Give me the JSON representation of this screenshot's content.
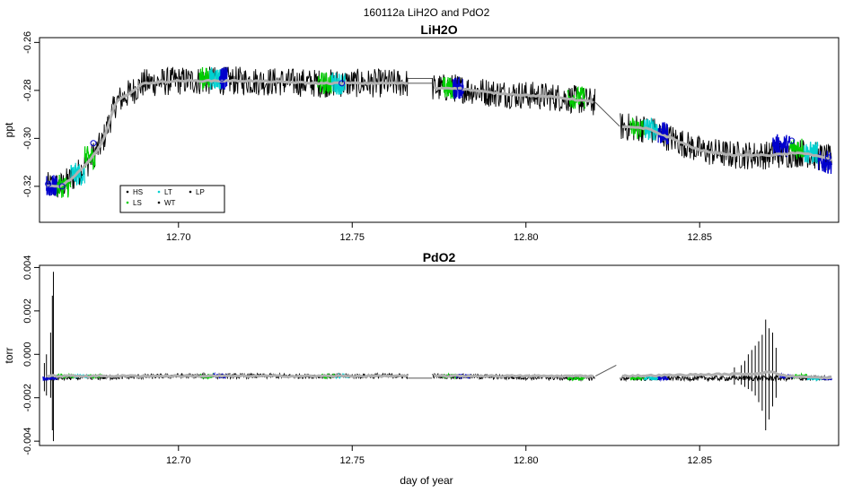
{
  "figure": {
    "main_title": "160112a   LiH2O and PdO2",
    "xlabel": "day of year"
  },
  "chart_data": [
    {
      "type": "line",
      "title": "LiH2O",
      "ylabel": "ppt",
      "xlim": [
        12.66,
        12.89
      ],
      "ylim": [
        -0.335,
        -0.258
      ],
      "xticks": [
        "12.70",
        "12.75",
        "12.80",
        "12.85"
      ],
      "xtick_values": [
        12.7,
        12.75,
        12.8,
        12.85
      ],
      "yticks": [
        "-0.26",
        "-0.28",
        "-0.30",
        "-0.32"
      ],
      "ytick_values": [
        -0.26,
        -0.28,
        -0.3,
        -0.32
      ],
      "legend": {
        "position": "bottom-left",
        "entries": [
          {
            "label": "HS",
            "color": "#000000"
          },
          {
            "label": "LT",
            "color": "#00d0d0"
          },
          {
            "label": "LP",
            "color": "#000000"
          },
          {
            "label": "LS",
            "color": "#00cc00"
          },
          {
            "label": "WT",
            "color": "#000000"
          }
        ]
      },
      "series": [
        {
          "role": "raw",
          "color": "#000000",
          "x": [
            12.662,
            12.666,
            12.67,
            12.674,
            12.678,
            12.682,
            12.69,
            12.7,
            12.72,
            12.74,
            12.76,
            12.766,
            12.773,
            12.78,
            12.79,
            12.8,
            12.81,
            12.82,
            12.827,
            12.835,
            12.842,
            12.85,
            12.86,
            12.87,
            12.88,
            12.888
          ],
          "y": [
            -0.32,
            -0.32,
            -0.316,
            -0.31,
            -0.302,
            -0.285,
            -0.277,
            -0.276,
            -0.276,
            -0.277,
            -0.277,
            -0.277,
            -0.279,
            -0.279,
            -0.281,
            -0.282,
            -0.283,
            -0.285,
            -0.295,
            -0.296,
            -0.3,
            -0.305,
            -0.307,
            -0.307,
            -0.306,
            -0.309
          ],
          "noise": 0.006
        },
        {
          "role": "smooth",
          "color": "#b0b0b0",
          "x": [
            12.662,
            12.666,
            12.67,
            12.674,
            12.678,
            12.682,
            12.69,
            12.7,
            12.72,
            12.74,
            12.76,
            12.766,
            12.773,
            12.78,
            12.79,
            12.8,
            12.81,
            12.82,
            12.827,
            12.835,
            12.842,
            12.85,
            12.86,
            12.87,
            12.88,
            12.888
          ],
          "y": [
            -0.32,
            -0.32,
            -0.316,
            -0.31,
            -0.302,
            -0.285,
            -0.277,
            -0.276,
            -0.276,
            -0.277,
            -0.277,
            -0.277,
            -0.279,
            -0.279,
            -0.281,
            -0.282,
            -0.283,
            -0.285,
            -0.295,
            -0.296,
            -0.3,
            -0.305,
            -0.307,
            -0.307,
            -0.306,
            -0.309
          ]
        }
      ],
      "gap_bridges": [
        {
          "x": [
            12.766,
            12.773
          ],
          "y": [
            -0.275,
            -0.275
          ]
        },
        {
          "x": [
            12.766,
            12.773
          ],
          "y": [
            -0.277,
            -0.277
          ]
        },
        {
          "x": [
            12.82,
            12.827
          ],
          "y": [
            -0.285,
            -0.295
          ]
        }
      ],
      "calibration_segments": [
        {
          "x0": 12.662,
          "x1": 12.665,
          "color": "#0000cc",
          "center": -0.32
        },
        {
          "x0": 12.665,
          "x1": 12.669,
          "color": "#00cc00",
          "center": -0.32
        },
        {
          "x0": 12.669,
          "x1": 12.673,
          "color": "#00d0d0",
          "center": -0.315
        },
        {
          "x0": 12.673,
          "x1": 12.676,
          "color": "#00cc00",
          "center": -0.308
        },
        {
          "x0": 12.706,
          "x1": 12.709,
          "color": "#00cc00",
          "center": -0.275
        },
        {
          "x0": 12.709,
          "x1": 12.712,
          "color": "#00d0d0",
          "center": -0.275
        },
        {
          "x0": 12.712,
          "x1": 12.714,
          "color": "#0000cc",
          "center": -0.275
        },
        {
          "x0": 12.74,
          "x1": 12.744,
          "color": "#00cc00",
          "center": -0.277
        },
        {
          "x0": 12.744,
          "x1": 12.748,
          "color": "#00d0d0",
          "center": -0.277
        },
        {
          "x0": 12.776,
          "x1": 12.779,
          "color": "#00cc00",
          "center": -0.279
        },
        {
          "x0": 12.779,
          "x1": 12.782,
          "color": "#0000cc",
          "center": -0.279
        },
        {
          "x0": 12.812,
          "x1": 12.817,
          "color": "#00cc00",
          "center": -0.283
        },
        {
          "x0": 12.83,
          "x1": 12.834,
          "color": "#00cc00",
          "center": -0.296
        },
        {
          "x0": 12.834,
          "x1": 12.838,
          "color": "#00d0d0",
          "center": -0.296
        },
        {
          "x0": 12.838,
          "x1": 12.841,
          "color": "#0000cc",
          "center": -0.298
        },
        {
          "x0": 12.871,
          "x1": 12.876,
          "color": "#0000cc",
          "center": -0.303
        },
        {
          "x0": 12.876,
          "x1": 12.88,
          "color": "#00cc00",
          "center": -0.304
        },
        {
          "x0": 12.88,
          "x1": 12.884,
          "color": "#00d0d0",
          "center": -0.306
        },
        {
          "x0": 12.884,
          "x1": 12.888,
          "color": "#0000cc",
          "center": -0.31
        }
      ],
      "markers": [
        {
          "x": 12.6625,
          "y": -0.319,
          "color": "#0000cc"
        },
        {
          "x": 12.6665,
          "y": -0.32,
          "color": "#0000cc"
        },
        {
          "x": 12.6755,
          "y": -0.302,
          "color": "#0000cc"
        },
        {
          "x": 12.7125,
          "y": -0.275,
          "color": "#0000cc"
        },
        {
          "x": 12.747,
          "y": -0.277,
          "color": "#0000cc"
        },
        {
          "x": 12.781,
          "y": -0.279,
          "color": "#0000cc"
        },
        {
          "x": 12.8395,
          "y": -0.297,
          "color": "#0000cc"
        },
        {
          "x": 12.8725,
          "y": -0.302,
          "color": "#0000cc"
        },
        {
          "x": 12.8765,
          "y": -0.301,
          "color": "#0000cc"
        },
        {
          "x": 12.887,
          "y": -0.308,
          "color": "#0000cc"
        }
      ]
    },
    {
      "type": "line",
      "title": "PdO2",
      "ylabel": "torr",
      "xlim": [
        12.66,
        12.89
      ],
      "ylim": [
        -0.0042,
        0.0041
      ],
      "xticks": [
        "12.70",
        "12.75",
        "12.80",
        "12.85"
      ],
      "xtick_values": [
        12.7,
        12.75,
        12.8,
        12.85
      ],
      "yticks": [
        "0.004",
        "0.002",
        "0.000",
        "-0.002",
        "-0.004"
      ],
      "ytick_values": [
        0.004,
        0.002,
        0.0,
        -0.002,
        -0.004
      ],
      "series": [
        {
          "role": "raw",
          "color": "#000000",
          "x": [
            12.662,
            12.7,
            12.766,
            12.773,
            12.82,
            12.827,
            12.888
          ],
          "y": [
            -0.0011,
            -0.001,
            -0.001,
            -0.001,
            -0.0011,
            -0.0011,
            -0.0011
          ],
          "noise": 0.00012
        },
        {
          "role": "smooth",
          "color": "#b0b0b0",
          "x": [
            12.662,
            12.7,
            12.766,
            12.773,
            12.82,
            12.827,
            12.865,
            12.87,
            12.875,
            12.888
          ],
          "y": [
            -0.001,
            -0.001,
            -0.001,
            -0.001,
            -0.001,
            -0.001,
            -0.0009,
            -0.0008,
            -0.001,
            -0.0011
          ]
        }
      ],
      "gap_bridges": [
        {
          "x": [
            12.766,
            12.773
          ],
          "y": [
            -0.0011,
            -0.0011
          ]
        },
        {
          "x": [
            12.82,
            12.826
          ],
          "y": [
            -0.001,
            -0.0005
          ]
        }
      ],
      "spikes": [
        {
          "x": 12.664,
          "ymin": -0.004,
          "ymax": 0.0038
        },
        {
          "x": 12.6637,
          "ymin": -0.0035,
          "ymax": 0.0027
        },
        {
          "x": 12.6632,
          "ymin": -0.002,
          "ymax": 0.001
        },
        {
          "x": 12.662,
          "ymin": -0.0019,
          "ymax": 0.0
        },
        {
          "x": 12.6614,
          "ymin": -0.0017,
          "ymax": -0.0004
        },
        {
          "x": 12.869,
          "ymin": -0.0035,
          "ymax": 0.0016
        },
        {
          "x": 12.87,
          "ymin": -0.003,
          "ymax": 0.0012
        },
        {
          "x": 12.868,
          "ymin": -0.0026,
          "ymax": 0.0009
        },
        {
          "x": 12.867,
          "ymin": -0.0022,
          "ymax": 0.0006
        },
        {
          "x": 12.871,
          "ymin": -0.0024,
          "ymax": 0.001
        },
        {
          "x": 12.866,
          "ymin": -0.0019,
          "ymax": 0.0004
        },
        {
          "x": 12.865,
          "ymin": -0.0017,
          "ymax": 0.0002
        },
        {
          "x": 12.864,
          "ymin": -0.0016,
          "ymax": 0.0
        },
        {
          "x": 12.872,
          "ymin": -0.002,
          "ymax": 0.0003
        },
        {
          "x": 12.863,
          "ymin": -0.0015,
          "ymax": -0.0003
        },
        {
          "x": 12.862,
          "ymin": -0.0014,
          "ymax": -0.0005
        },
        {
          "x": 12.86,
          "ymin": -0.0014,
          "ymax": -0.0006
        }
      ],
      "calibration_segments": [
        {
          "x0": 12.661,
          "x1": 12.665,
          "color": "#0000cc",
          "center": -0.0011
        },
        {
          "x0": 12.665,
          "x1": 12.67,
          "color": "#00cc00",
          "center": -0.001
        },
        {
          "x0": 12.67,
          "x1": 12.674,
          "color": "#00d0d0",
          "center": -0.001
        },
        {
          "x0": 12.674,
          "x1": 12.678,
          "color": "#00cc00",
          "center": -0.001
        },
        {
          "x0": 12.706,
          "x1": 12.71,
          "color": "#00cc00",
          "center": -0.001
        },
        {
          "x0": 12.71,
          "x1": 12.714,
          "color": "#0000cc",
          "center": -0.001
        },
        {
          "x0": 12.741,
          "x1": 12.745,
          "color": "#00cc00",
          "center": -0.001
        },
        {
          "x0": 12.745,
          "x1": 12.749,
          "color": "#00d0d0",
          "center": -0.001
        },
        {
          "x0": 12.776,
          "x1": 12.78,
          "color": "#00cc00",
          "center": -0.001
        },
        {
          "x0": 12.78,
          "x1": 12.784,
          "color": "#0000cc",
          "center": -0.001
        },
        {
          "x0": 12.812,
          "x1": 12.817,
          "color": "#00cc00",
          "center": -0.0011
        },
        {
          "x0": 12.83,
          "x1": 12.834,
          "color": "#00cc00",
          "center": -0.0011
        },
        {
          "x0": 12.834,
          "x1": 12.838,
          "color": "#00d0d0",
          "center": -0.0011
        },
        {
          "x0": 12.838,
          "x1": 12.841,
          "color": "#0000cc",
          "center": -0.0011
        },
        {
          "x0": 12.873,
          "x1": 12.877,
          "color": "#0000cc",
          "center": -0.001
        },
        {
          "x0": 12.877,
          "x1": 12.881,
          "color": "#00cc00",
          "center": -0.001
        },
        {
          "x0": 12.881,
          "x1": 12.885,
          "color": "#00d0d0",
          "center": -0.0011
        },
        {
          "x0": 12.885,
          "x1": 12.888,
          "color": "#0000cc",
          "center": -0.0011
        }
      ]
    }
  ]
}
